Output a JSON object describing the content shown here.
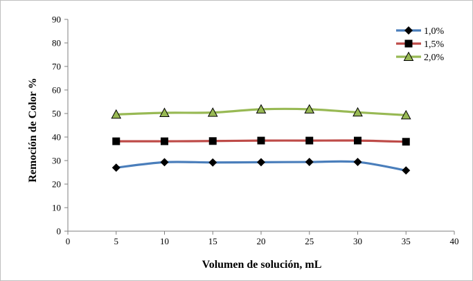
{
  "chart_data": {
    "type": "line",
    "title": "",
    "xlabel": "Volumen de solución, mL",
    "ylabel": "Remoción de Color %",
    "xlim": [
      0,
      40
    ],
    "ylim": [
      0,
      90
    ],
    "xticks": [
      0,
      5,
      10,
      15,
      20,
      25,
      30,
      35,
      40
    ],
    "yticks": [
      0,
      10,
      20,
      30,
      40,
      50,
      60,
      70,
      80,
      90
    ],
    "grid": false,
    "legend_position": "top-right",
    "x": [
      5,
      10,
      15,
      20,
      25,
      30,
      35
    ],
    "series": [
      {
        "name": "1,0%",
        "color": "#4a7ebb",
        "marker": "diamond",
        "values": [
          27.0,
          29.3,
          29.2,
          29.3,
          29.4,
          29.4,
          25.8
        ]
      },
      {
        "name": "1,5%",
        "color": "#be4b48",
        "marker": "square",
        "values": [
          38.2,
          38.2,
          38.3,
          38.5,
          38.5,
          38.5,
          38.0
        ]
      },
      {
        "name": "2,0%",
        "color": "#98b954",
        "marker": "triangle",
        "values": [
          49.6,
          50.3,
          50.4,
          51.8,
          51.8,
          50.5,
          49.3
        ]
      }
    ]
  }
}
